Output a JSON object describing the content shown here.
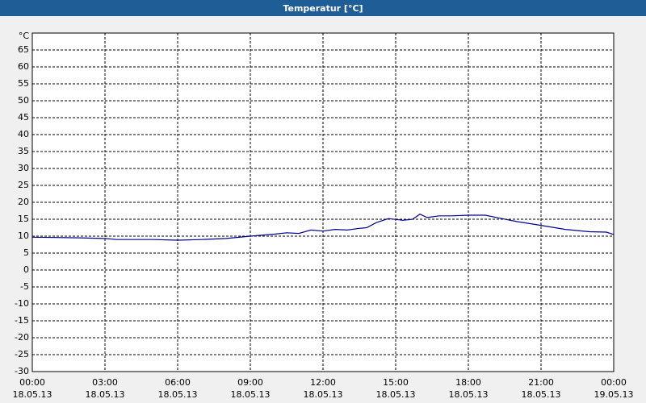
{
  "chart_data": {
    "type": "line",
    "title": "Temperatur [°C]",
    "y_unit": "°C",
    "x": [
      0,
      1,
      2,
      3,
      3.5,
      4,
      5,
      6,
      7,
      8,
      9,
      10,
      10.5,
      11,
      11.5,
      12,
      12.5,
      13,
      13.5,
      13.8,
      14.2,
      14.7,
      15.3,
      15.7,
      16,
      16.3,
      16.8,
      17.3,
      18,
      18.7,
      19.3,
      20,
      21,
      22,
      23,
      23.7,
      24
    ],
    "series": [
      {
        "name": "Temperatur",
        "color": "#00008b",
        "values": [
          9.7,
          9.6,
          9.5,
          9.3,
          9,
          9,
          9,
          8.8,
          9,
          9.3,
          10,
          10.6,
          11,
          10.8,
          11.8,
          11.5,
          12,
          11.8,
          12.3,
          12.5,
          14,
          15.2,
          14.7,
          15,
          16.5,
          15.5,
          16,
          16,
          16.2,
          16.2,
          15.3,
          14.3,
          13.2,
          12,
          11.3,
          11.2,
          10.5
        ]
      }
    ],
    "xlim": [
      0,
      24
    ],
    "ylim": [
      -30,
      70
    ],
    "yticks": [
      -30,
      -25,
      -20,
      -15,
      -10,
      -5,
      0,
      5,
      10,
      15,
      20,
      25,
      30,
      35,
      40,
      45,
      50,
      55,
      60,
      65
    ],
    "xticks": [
      {
        "value": 0,
        "label": [
          "00:00",
          "18.05.13"
        ]
      },
      {
        "value": 3,
        "label": [
          "03:00",
          "18.05.13"
        ]
      },
      {
        "value": 6,
        "label": [
          "06:00",
          "18.05.13"
        ]
      },
      {
        "value": 9,
        "label": [
          "09:00",
          "18.05.13"
        ]
      },
      {
        "value": 12,
        "label": [
          "12:00",
          "18.05.13"
        ]
      },
      {
        "value": 15,
        "label": [
          "15:00",
          "18.05.13"
        ]
      },
      {
        "value": 18,
        "label": [
          "18:00",
          "18.05.13"
        ]
      },
      {
        "value": 21,
        "label": [
          "21:00",
          "18.05.13"
        ]
      },
      {
        "value": 24,
        "label": [
          "00:00",
          "19.05.13"
        ]
      }
    ],
    "grid": true
  }
}
